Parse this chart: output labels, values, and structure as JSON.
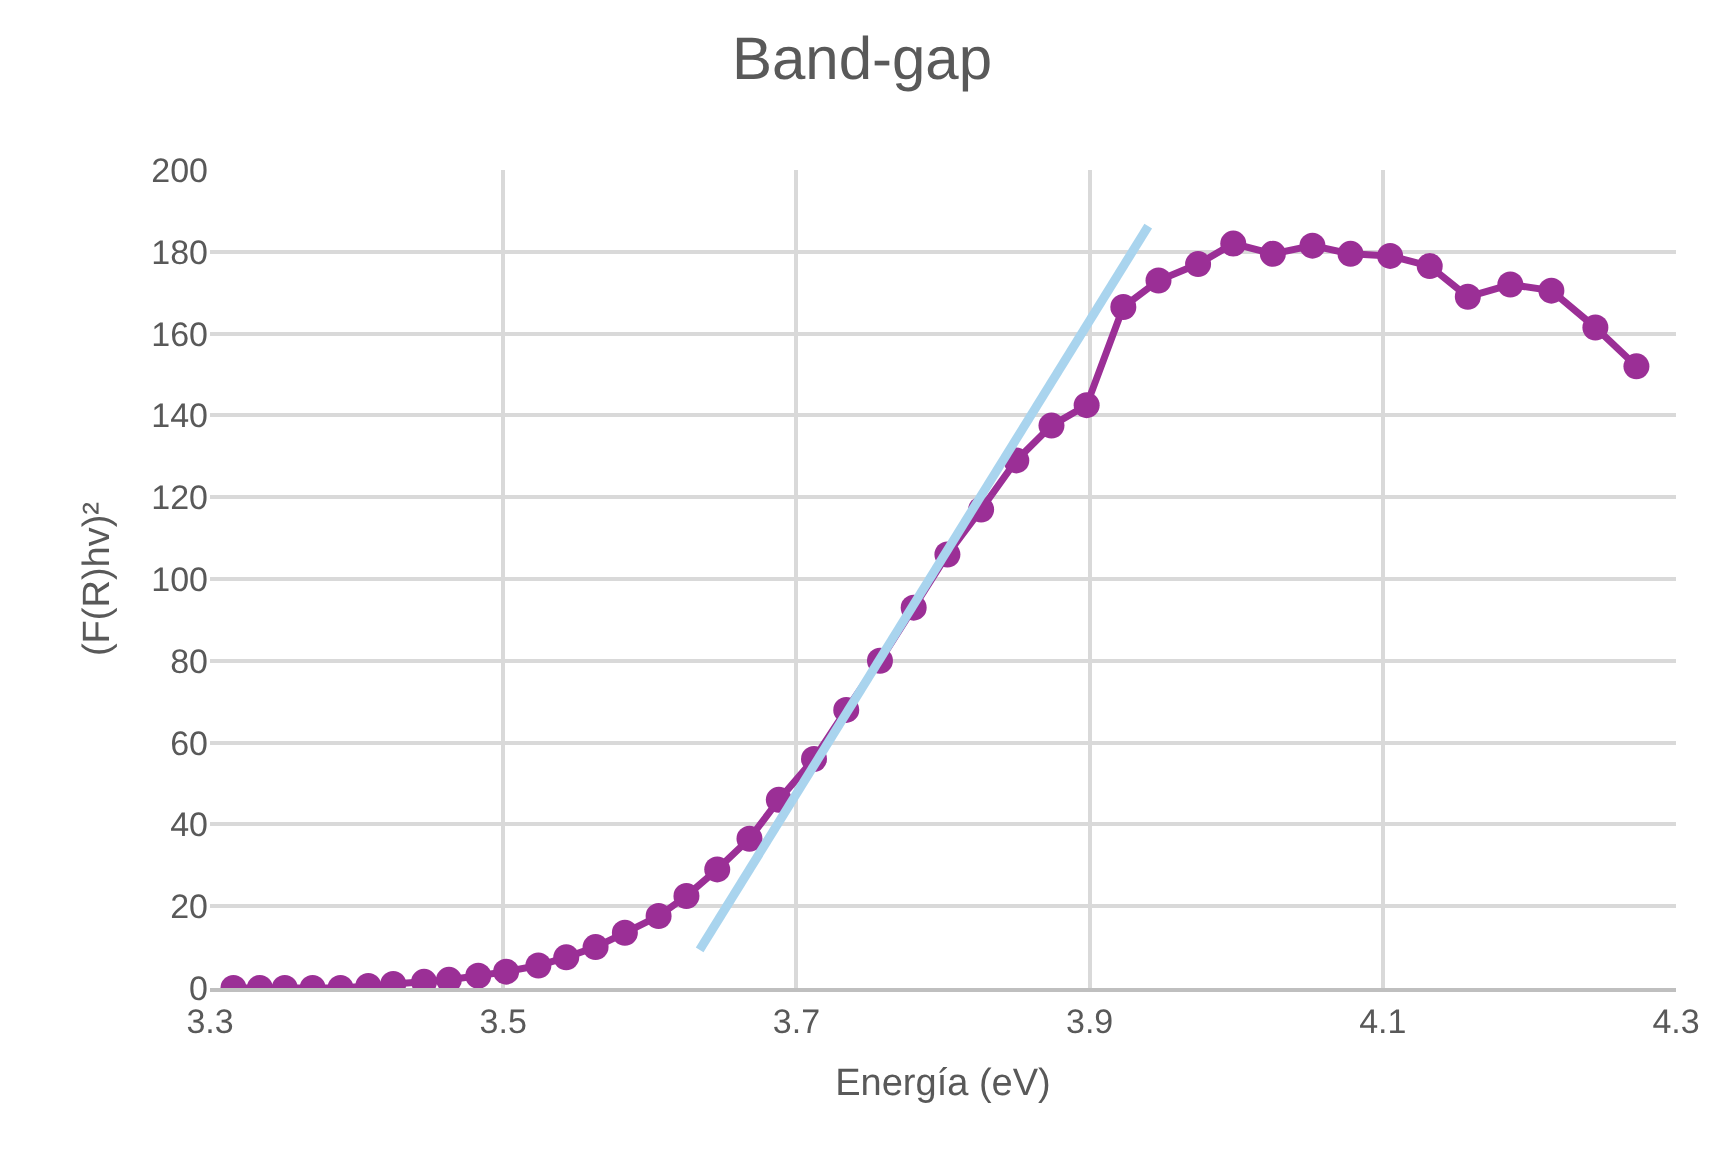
{
  "chart_data": {
    "type": "line",
    "title": "Band-gap",
    "xlabel": "Energía (eV)",
    "ylabel": "(F(R)hv)²",
    "xlim": [
      3.3,
      4.3
    ],
    "xticks": [
      3.3,
      3.5,
      3.7,
      3.9,
      4.1,
      4.3
    ],
    "ylim": [
      0,
      200
    ],
    "yticks": [
      0,
      20,
      40,
      60,
      80,
      100,
      120,
      140,
      160,
      180,
      200
    ],
    "grid": true,
    "marker": "circle",
    "line_style": "solid",
    "series": [
      {
        "color": "#9b2f96",
        "x": [
          3.316,
          3.334,
          3.351,
          3.37,
          3.389,
          3.408,
          3.425,
          3.446,
          3.463,
          3.483,
          3.502,
          3.524,
          3.543,
          3.563,
          3.583,
          3.606,
          3.625,
          3.646,
          3.668,
          3.688,
          3.712,
          3.734,
          3.757,
          3.78,
          3.803,
          3.826,
          3.85,
          3.874,
          3.898,
          3.923,
          3.947,
          3.974,
          3.998,
          4.025,
          4.052,
          4.078,
          4.105,
          4.132,
          4.158,
          4.187,
          4.215,
          4.245,
          4.273
        ],
        "values": [
          0,
          0,
          0,
          0,
          0,
          0.5,
          1,
          1.5,
          2,
          3,
          4,
          5.5,
          7.5,
          10,
          13.5,
          17.6,
          22.5,
          29,
          36.5,
          46,
          56,
          68,
          80,
          93,
          106,
          117,
          129,
          137.5,
          142.5,
          166.5,
          173,
          177,
          182,
          179.5,
          181.5,
          179.5,
          179,
          176.5,
          169,
          172,
          170.5,
          161.5,
          152
        ]
      },
      {
        "type": "line",
        "marker": "none",
        "color": "#a9d4ee",
        "x": [
          3.634,
          3.94
        ],
        "values": [
          9.3,
          186.3
        ]
      }
    ]
  }
}
